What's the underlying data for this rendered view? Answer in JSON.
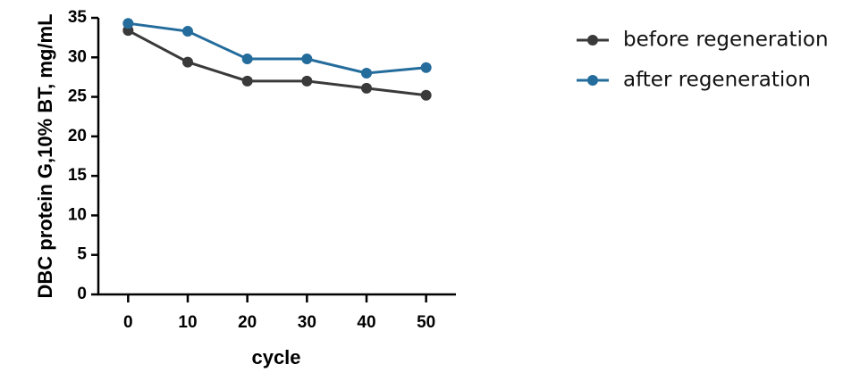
{
  "chart_data": {
    "type": "line",
    "x": [
      0,
      10,
      20,
      30,
      40,
      50
    ],
    "xticks": [
      "0",
      "10",
      "20",
      "30",
      "40",
      "50"
    ],
    "yticks": [
      "0",
      "5",
      "10",
      "15",
      "20",
      "25",
      "30",
      "35"
    ],
    "xlabel": "cycle",
    "ylabel": "DBC protein G,10% BT, mg/mL",
    "xlim": [
      -5,
      55
    ],
    "ylim": [
      0,
      35
    ],
    "grid": false,
    "legend_position": "top-right",
    "series": [
      {
        "name": "before regeneration",
        "color": "#3a3a3a",
        "values": [
          33.4,
          29.4,
          27.0,
          27.0,
          26.1,
          25.2
        ]
      },
      {
        "name": "after regeneration",
        "color": "#236c9c",
        "values": [
          34.3,
          33.3,
          29.8,
          29.8,
          28.0,
          28.7
        ]
      }
    ]
  }
}
